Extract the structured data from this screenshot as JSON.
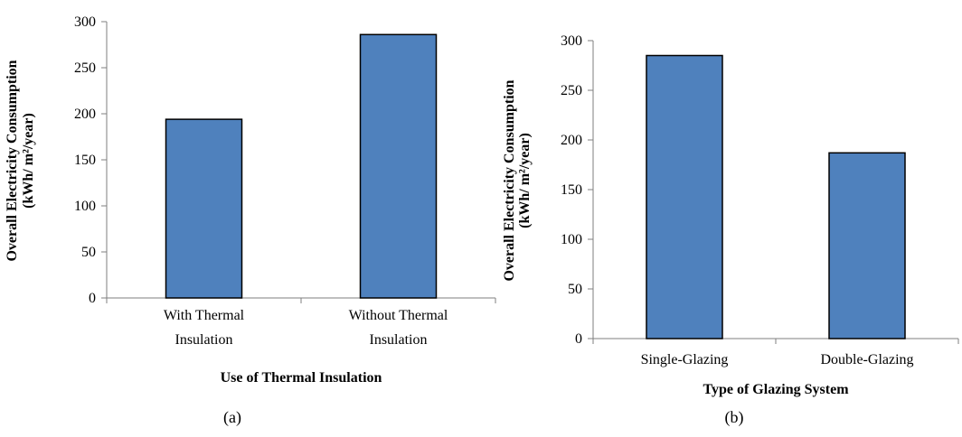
{
  "colors": {
    "bar_fill": "#4f81bd",
    "bar_stroke": "#000000",
    "axis": "#7f7f7f"
  },
  "chart_data": [
    {
      "type": "bar",
      "panel_label": "(a)",
      "categories": [
        [
          "With Thermal",
          "Insulation"
        ],
        [
          "Without Thermal",
          "Insulation"
        ]
      ],
      "values": [
        194,
        286
      ],
      "xlabel": "Use of Thermal Insulation",
      "ylabel": [
        "Overall Electricity Consumption",
        "(kWh/ m²/year)"
      ],
      "ylim": [
        0,
        300
      ],
      "yticks": [
        0,
        50,
        100,
        150,
        200,
        250,
        300
      ],
      "grid": false,
      "legend": "none"
    },
    {
      "type": "bar",
      "panel_label": "(b)",
      "categories": [
        [
          "Single-Glazing"
        ],
        [
          "Double-Glazing"
        ]
      ],
      "values": [
        285,
        187
      ],
      "xlabel": "Type of Glazing System",
      "ylabel": [
        "Overall Electricity Consumption",
        "(kWh/ m²/year)"
      ],
      "ylim": [
        0,
        300
      ],
      "yticks": [
        0,
        50,
        100,
        150,
        200,
        250,
        300
      ],
      "grid": false,
      "legend": "none"
    }
  ]
}
